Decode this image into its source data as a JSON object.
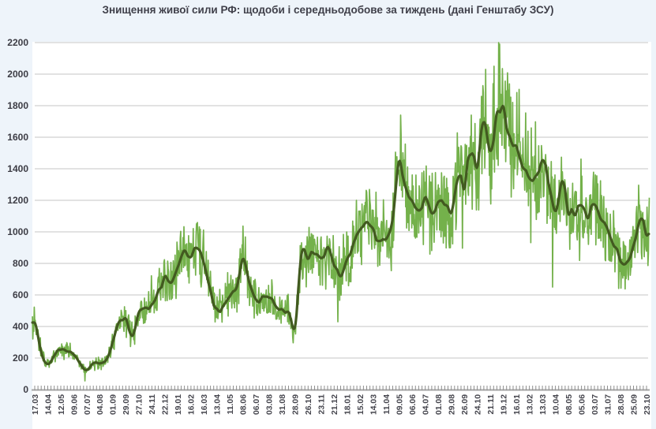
{
  "title": "Знищення живої сили РФ: щодоби і середньодобове за тиждень (дані Генштабу ЗСУ)",
  "colors": {
    "background": "#eef4fa",
    "plot_background": "#ffffff",
    "daily_series": "#74b14b",
    "weekly_average_series": "#425a20",
    "gridline": "#c6c6c6",
    "axis_line": "#a6a6a6",
    "minor_tick": "#8f8f8f",
    "title_text": "#3f3f49",
    "tick_text": "#45454d"
  },
  "chart_data": {
    "type": "line",
    "title": "Знищення живої сили РФ: щодоби і середньодобове за тиждень (дані Генштабу ЗСУ)",
    "legend": "none (two series distinguished by color: light green = daily, dark green = 7-day average)",
    "grid": "horizontal gridlines on",
    "y_axis": {
      "min": 0,
      "max": 2200,
      "step": 200,
      "tick_labels": [
        "0",
        "200",
        "400",
        "600",
        "800",
        "1000",
        "1200",
        "1400",
        "1600",
        "1800",
        "2000",
        "2200"
      ]
    },
    "x_axis": {
      "start_date": "17.03.2022",
      "last_label_date": "23.10.2025",
      "label_step_days": 28,
      "minor_tick_step_days": 7,
      "tick_labels": [
        "17.03",
        "14.04",
        "12.05",
        "09.06",
        "07.07",
        "04.08",
        "01.09",
        "29.09",
        "27.10",
        "24.11",
        "22.12",
        "19.01",
        "16.02",
        "16.03",
        "13.04",
        "11.05",
        "08.06",
        "06.07",
        "03.08",
        "31.08",
        "28.09",
        "26.10",
        "23.11",
        "21.12",
        "18.01",
        "15.02",
        "14.03",
        "11.04",
        "09.05",
        "06.06",
        "04.07",
        "01.08",
        "29.08",
        "26.09",
        "24.10",
        "21.11",
        "19.12",
        "16.01",
        "13.02",
        "13.03",
        "10.04",
        "08.05",
        "05.06",
        "03.07",
        "31.07",
        "28.08",
        "25.09",
        "23.10"
      ]
    },
    "series": [
      {
        "name": "щодоби",
        "role": "daily reported values",
        "color": "#74b14b",
        "description": "very noisy daily line oscillating around the 7-day average, typical deviation ±10–30%",
        "noise_model": {
          "relative_spread": 0.17,
          "seed": 20220317
        },
        "notable_extremes": [
          {
            "day_index": 0,
            "approx_date": "17.03.2022",
            "value": 440
          },
          {
            "day_index": 108,
            "approx_date": "03.07.2022",
            "value": 55
          },
          {
            "day_index": 652,
            "approx_date": "29.12.2023",
            "value": 430
          },
          {
            "day_index": 787,
            "approx_date": "13.05.2024",
            "value": 1740
          },
          {
            "day_index": 939,
            "approx_date": "11.10.2024",
            "value": 1740
          },
          {
            "day_index": 970,
            "approx_date": "11.11.2024",
            "value": 2030
          },
          {
            "day_index": 998,
            "approx_date": "09.12.2024",
            "value": 2200
          },
          {
            "day_index": 1114,
            "approx_date": "04.04.2025",
            "value": 650
          }
        ]
      },
      {
        "name": "середньодобове за тиждень",
        "role": "7-day moving average",
        "color": "#425a20",
        "start_date": "17.03.2022",
        "step_days": 14,
        "values": [
          430,
          230,
          160,
          220,
          260,
          240,
          220,
          160,
          125,
          170,
          165,
          185,
          300,
          430,
          440,
          350,
          480,
          520,
          540,
          620,
          700,
          680,
          760,
          870,
          850,
          900,
          800,
          620,
          500,
          530,
          600,
          640,
          820,
          680,
          560,
          580,
          600,
          540,
          500,
          480,
          400,
          880,
          850,
          880,
          840,
          880,
          790,
          710,
          840,
          920,
          1000,
          1040,
          1000,
          930,
          950,
          1060,
          1430,
          1280,
          1190,
          1150,
          1190,
          1120,
          1200,
          1200,
          1130,
          1330,
          1300,
          1500,
          1400,
          1700,
          1490,
          1740,
          1775,
          1560,
          1500,
          1420,
          1340,
          1360,
          1440,
          1300,
          1130,
          1320,
          1130,
          1120,
          1150,
          1100,
          1160,
          1060,
          1000,
          930,
          820,
          790,
          900,
          1080,
          990
        ]
      }
    ]
  }
}
